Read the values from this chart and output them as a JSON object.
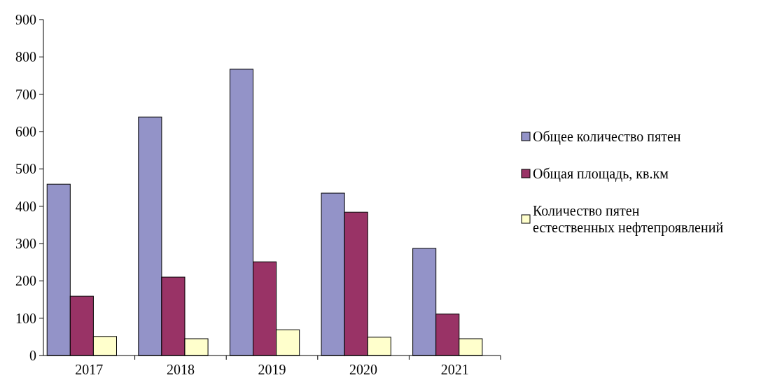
{
  "chart_data": {
    "type": "bar",
    "categories": [
      "2017",
      "2018",
      "2019",
      "2020",
      "2021"
    ],
    "series": [
      {
        "name": "Общее количество пятен",
        "color": "#9393c8",
        "values": [
          459,
          639,
          767,
          435,
          287
        ]
      },
      {
        "name": "Общая площадь, кв.км",
        "color": "#993366",
        "values": [
          159,
          210,
          251,
          384,
          111
        ]
      },
      {
        "name": "Количество пятен естественных нефтепроявлений",
        "color": "#ffffcc",
        "values": [
          51,
          45,
          69,
          49,
          45
        ]
      }
    ],
    "ylim": [
      0,
      900
    ],
    "yticks": [
      0,
      100,
      200,
      300,
      400,
      500,
      600,
      700,
      800,
      900
    ],
    "grid": false,
    "legend": "right"
  }
}
